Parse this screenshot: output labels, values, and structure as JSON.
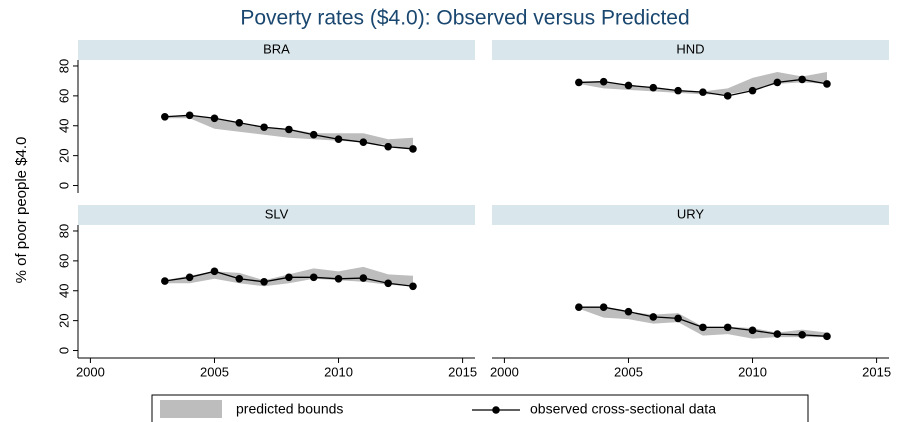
{
  "chart_data": {
    "type": "line",
    "title": "Poverty rates ($4.0): Observed versus Predicted",
    "y_label": "% of poor people $4.0",
    "xlim": [
      1999.5,
      2015.5
    ],
    "xticks": [
      2000,
      2005,
      2010,
      2015
    ],
    "ylim": [
      -5,
      84
    ],
    "yticks": [
      0,
      20,
      40,
      60,
      80
    ],
    "legend": [
      "predicted bounds",
      "observed cross-sectional data"
    ],
    "band_color": "#bdbdbd",
    "line_color": "#000000",
    "panels": [
      {
        "title": "BRA",
        "x": [
          2003,
          2004,
          2005,
          2006,
          2007,
          2008,
          2009,
          2010,
          2011,
          2012,
          2013
        ],
        "observed": [
          46,
          47,
          45,
          42,
          39,
          37.5,
          34,
          31,
          29,
          26,
          24.5
        ],
        "lower": [
          45,
          45,
          38,
          36,
          34,
          32,
          31,
          30,
          29,
          27,
          24
        ],
        "upper": [
          46,
          47,
          45,
          42,
          39,
          38,
          35,
          35,
          35,
          31,
          32
        ]
      },
      {
        "title": "HND",
        "x": [
          2003,
          2004,
          2005,
          2006,
          2007,
          2008,
          2009,
          2010,
          2011,
          2012,
          2013
        ],
        "observed": [
          69,
          69.5,
          67,
          65.5,
          63.5,
          62.5,
          60,
          63.5,
          69,
          71,
          68
        ],
        "lower": [
          68,
          65,
          64,
          63,
          62,
          61,
          61,
          64,
          68,
          69,
          68
        ],
        "upper": [
          69,
          70,
          67,
          66,
          64,
          63,
          65,
          72,
          76,
          73,
          76
        ]
      },
      {
        "title": "SLV",
        "x": [
          2003,
          2004,
          2005,
          2006,
          2007,
          2008,
          2009,
          2010,
          2011,
          2012,
          2013
        ],
        "observed": [
          46.5,
          49,
          53,
          48,
          46,
          49,
          49,
          48,
          48.5,
          45,
          43
        ],
        "lower": [
          45,
          45,
          48,
          45,
          43,
          45,
          48,
          47,
          46,
          44,
          43
        ],
        "upper": [
          47,
          50,
          53,
          52,
          47,
          51,
          55,
          53,
          56,
          51,
          50
        ]
      },
      {
        "title": "URY",
        "x": [
          2003,
          2004,
          2005,
          2006,
          2007,
          2008,
          2009,
          2010,
          2011,
          2012,
          2013
        ],
        "observed": [
          29,
          29,
          26,
          22.5,
          21.5,
          15.5,
          15.5,
          13.5,
          11,
          10.5,
          9.5
        ],
        "lower": [
          28,
          22,
          21,
          18,
          19,
          10,
          11,
          8,
          9,
          9,
          9
        ],
        "upper": [
          29,
          29,
          26,
          24,
          25,
          16,
          16,
          15,
          12,
          14,
          12
        ]
      }
    ]
  }
}
